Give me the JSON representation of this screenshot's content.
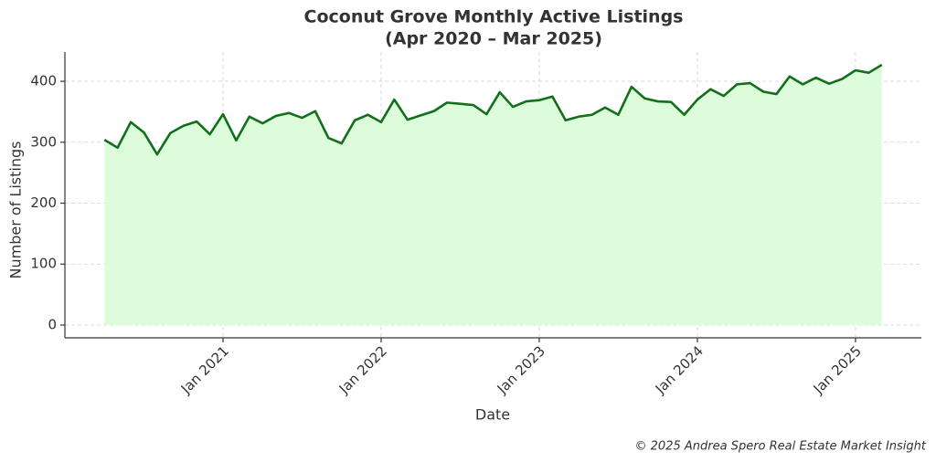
{
  "chart_data": {
    "type": "area-line",
    "title": "Coconut Grove Monthly Active Listings",
    "subtitle": "(Apr 2020 – Mar 2025)",
    "x_label": "Date",
    "y_label": "Number of Listings",
    "footer": "© 2025 Andrea Spero Real Estate Market Insight",
    "x": [
      "2020-04",
      "2020-05",
      "2020-06",
      "2020-07",
      "2020-08",
      "2020-09",
      "2020-10",
      "2020-11",
      "2020-12",
      "2021-01",
      "2021-02",
      "2021-03",
      "2021-04",
      "2021-05",
      "2021-06",
      "2021-07",
      "2021-08",
      "2021-09",
      "2021-10",
      "2021-11",
      "2021-12",
      "2022-01",
      "2022-02",
      "2022-03",
      "2022-04",
      "2022-05",
      "2022-06",
      "2022-07",
      "2022-08",
      "2022-09",
      "2022-10",
      "2022-11",
      "2022-12",
      "2023-01",
      "2023-02",
      "2023-03",
      "2023-04",
      "2023-05",
      "2023-06",
      "2023-07",
      "2023-08",
      "2023-09",
      "2023-10",
      "2023-11",
      "2023-12",
      "2024-01",
      "2024-02",
      "2024-03",
      "2024-04",
      "2024-05",
      "2024-06",
      "2024-07",
      "2024-08",
      "2024-09",
      "2024-10",
      "2024-11",
      "2024-12",
      "2025-01",
      "2025-02",
      "2025-03"
    ],
    "series": [
      {
        "name": "Active Listings",
        "color": "#12701a",
        "fill": "#dcfcdc",
        "values": [
          304,
          291,
          333,
          316,
          280,
          315,
          327,
          334,
          313,
          346,
          303,
          342,
          331,
          343,
          348,
          340,
          351,
          307,
          298,
          336,
          345,
          333,
          370,
          337,
          344,
          351,
          365,
          363,
          361,
          346,
          382,
          358,
          367,
          369,
          375,
          336,
          342,
          345,
          357,
          345,
          391,
          372,
          367,
          366,
          345,
          370,
          387,
          376,
          395,
          397,
          383,
          379,
          408,
          395,
          406,
          396,
          404,
          418,
          414,
          427
        ]
      }
    ],
    "xlim": [
      "2020-01",
      "2025-06"
    ],
    "xticks": [
      {
        "value": "2021-01",
        "label": "Jan 2021"
      },
      {
        "value": "2022-01",
        "label": "Jan 2022"
      },
      {
        "value": "2023-01",
        "label": "Jan 2023"
      },
      {
        "value": "2024-01",
        "label": "Jan 2024"
      },
      {
        "value": "2025-01",
        "label": "Jan 2025"
      }
    ],
    "ylim": [
      -21,
      448
    ],
    "yticks": [
      0,
      100,
      200,
      300,
      400
    ],
    "grid": true
  }
}
